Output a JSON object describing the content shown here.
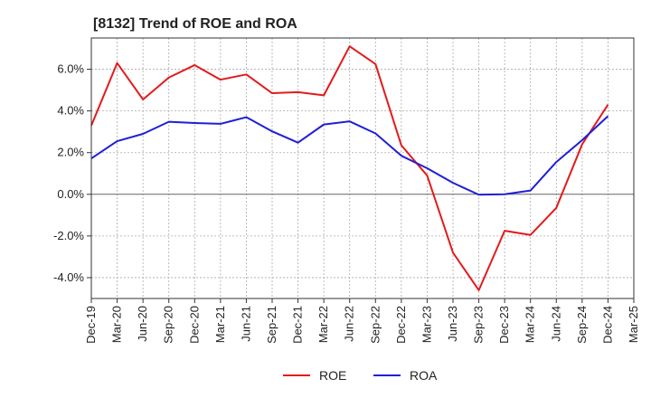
{
  "chart_data": {
    "type": "line",
    "title": "[8132]  Trend of ROE and ROA",
    "xlabel": "",
    "ylabel": "",
    "x": [
      "Dec-19",
      "Mar-20",
      "Jun-20",
      "Sep-20",
      "Dec-20",
      "Mar-21",
      "Jun-21",
      "Sep-21",
      "Dec-21",
      "Mar-22",
      "Jun-22",
      "Sep-22",
      "Dec-22",
      "Mar-23",
      "Jun-23",
      "Sep-23",
      "Dec-23",
      "Mar-24",
      "Jun-24",
      "Sep-24",
      "Dec-24",
      "Mar-25"
    ],
    "ylim": [
      -5.0,
      7.5
    ],
    "yticks": [
      -4.0,
      -2.0,
      0.0,
      2.0,
      4.0,
      6.0
    ],
    "ytick_labels": [
      "-4.0%",
      "-2.0%",
      "0.0%",
      "2.0%",
      "4.0%",
      "6.0%"
    ],
    "grid": true,
    "legend": "bottom",
    "series": [
      {
        "name": "ROE",
        "color": "#e31a1c",
        "values": [
          3.3,
          6.3,
          4.55,
          5.6,
          6.2,
          5.5,
          5.75,
          4.85,
          4.9,
          4.75,
          7.1,
          6.25,
          2.35,
          0.9,
          -2.8,
          -4.6,
          -1.75,
          -1.95,
          -0.65,
          2.4,
          4.3,
          null
        ]
      },
      {
        "name": "ROA",
        "color": "#1f1fd6",
        "values": [
          1.72,
          2.55,
          2.9,
          3.48,
          3.42,
          3.38,
          3.7,
          3.02,
          2.48,
          3.35,
          3.5,
          2.92,
          1.85,
          1.25,
          0.55,
          -0.02,
          0.0,
          0.18,
          1.55,
          2.6,
          3.75,
          null
        ]
      }
    ]
  }
}
